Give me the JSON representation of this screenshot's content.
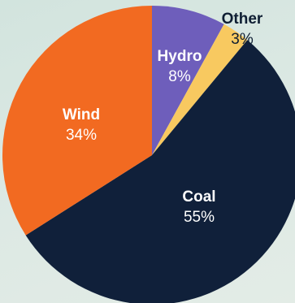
{
  "chart_data": {
    "type": "pie",
    "title": "",
    "start_angle_deg": 0,
    "direction": "clockwise",
    "slices": [
      {
        "label": "Hydro",
        "value_text": "8%",
        "value": 8,
        "color": "#6e5ebb",
        "label_color": "#ffffff",
        "label_placement": "inside"
      },
      {
        "label": "Other",
        "value_text": "3%",
        "value": 3,
        "color": "#f8c960",
        "label_color": "#0f1e33",
        "label_placement": "outside"
      },
      {
        "label": "Coal",
        "value_text": "55%",
        "value": 55,
        "color": "#10203a",
        "label_color": "#ffffff",
        "label_placement": "inside"
      },
      {
        "label": "Wind",
        "value_text": "34%",
        "value": 34,
        "color": "#f26a21",
        "label_color": "#ffffff",
        "label_placement": "inside"
      }
    ]
  }
}
